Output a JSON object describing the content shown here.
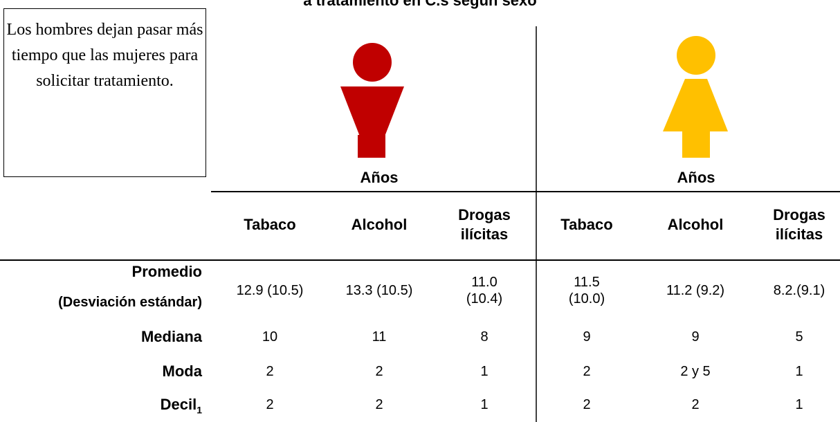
{
  "title": "a tratamiento en C.s según sexo",
  "note": "Los hombres dejan pasar más tiempo que las mujeres para solicitar tratamiento.",
  "groups": [
    "Años",
    "Años"
  ],
  "columns": [
    "Tabaco",
    "Alcohol",
    "Drogas ilícitas",
    "Tabaco",
    "Alcohol",
    "Drogas ilícitas"
  ],
  "rows": [
    {
      "label": "Promedio",
      "sublabel": "(Desviación estándar)",
      "values": [
        "12.9 (10.5)",
        "13.3 (10.5)",
        "11.0 (10.4)",
        "11.5 (10.0)",
        "11.2 (9.2)",
        "8.2.(9.1)"
      ]
    },
    {
      "label": "Mediana",
      "values": [
        "10",
        "11",
        "8",
        "9",
        "9",
        "5"
      ]
    },
    {
      "label": "Moda",
      "values": [
        "2",
        "2",
        "1",
        "2",
        "2 y 5",
        "1"
      ]
    },
    {
      "label": "Decil",
      "label_sub": "1",
      "values": [
        "2",
        "2",
        "1",
        "2",
        "2",
        "1"
      ]
    }
  ]
}
